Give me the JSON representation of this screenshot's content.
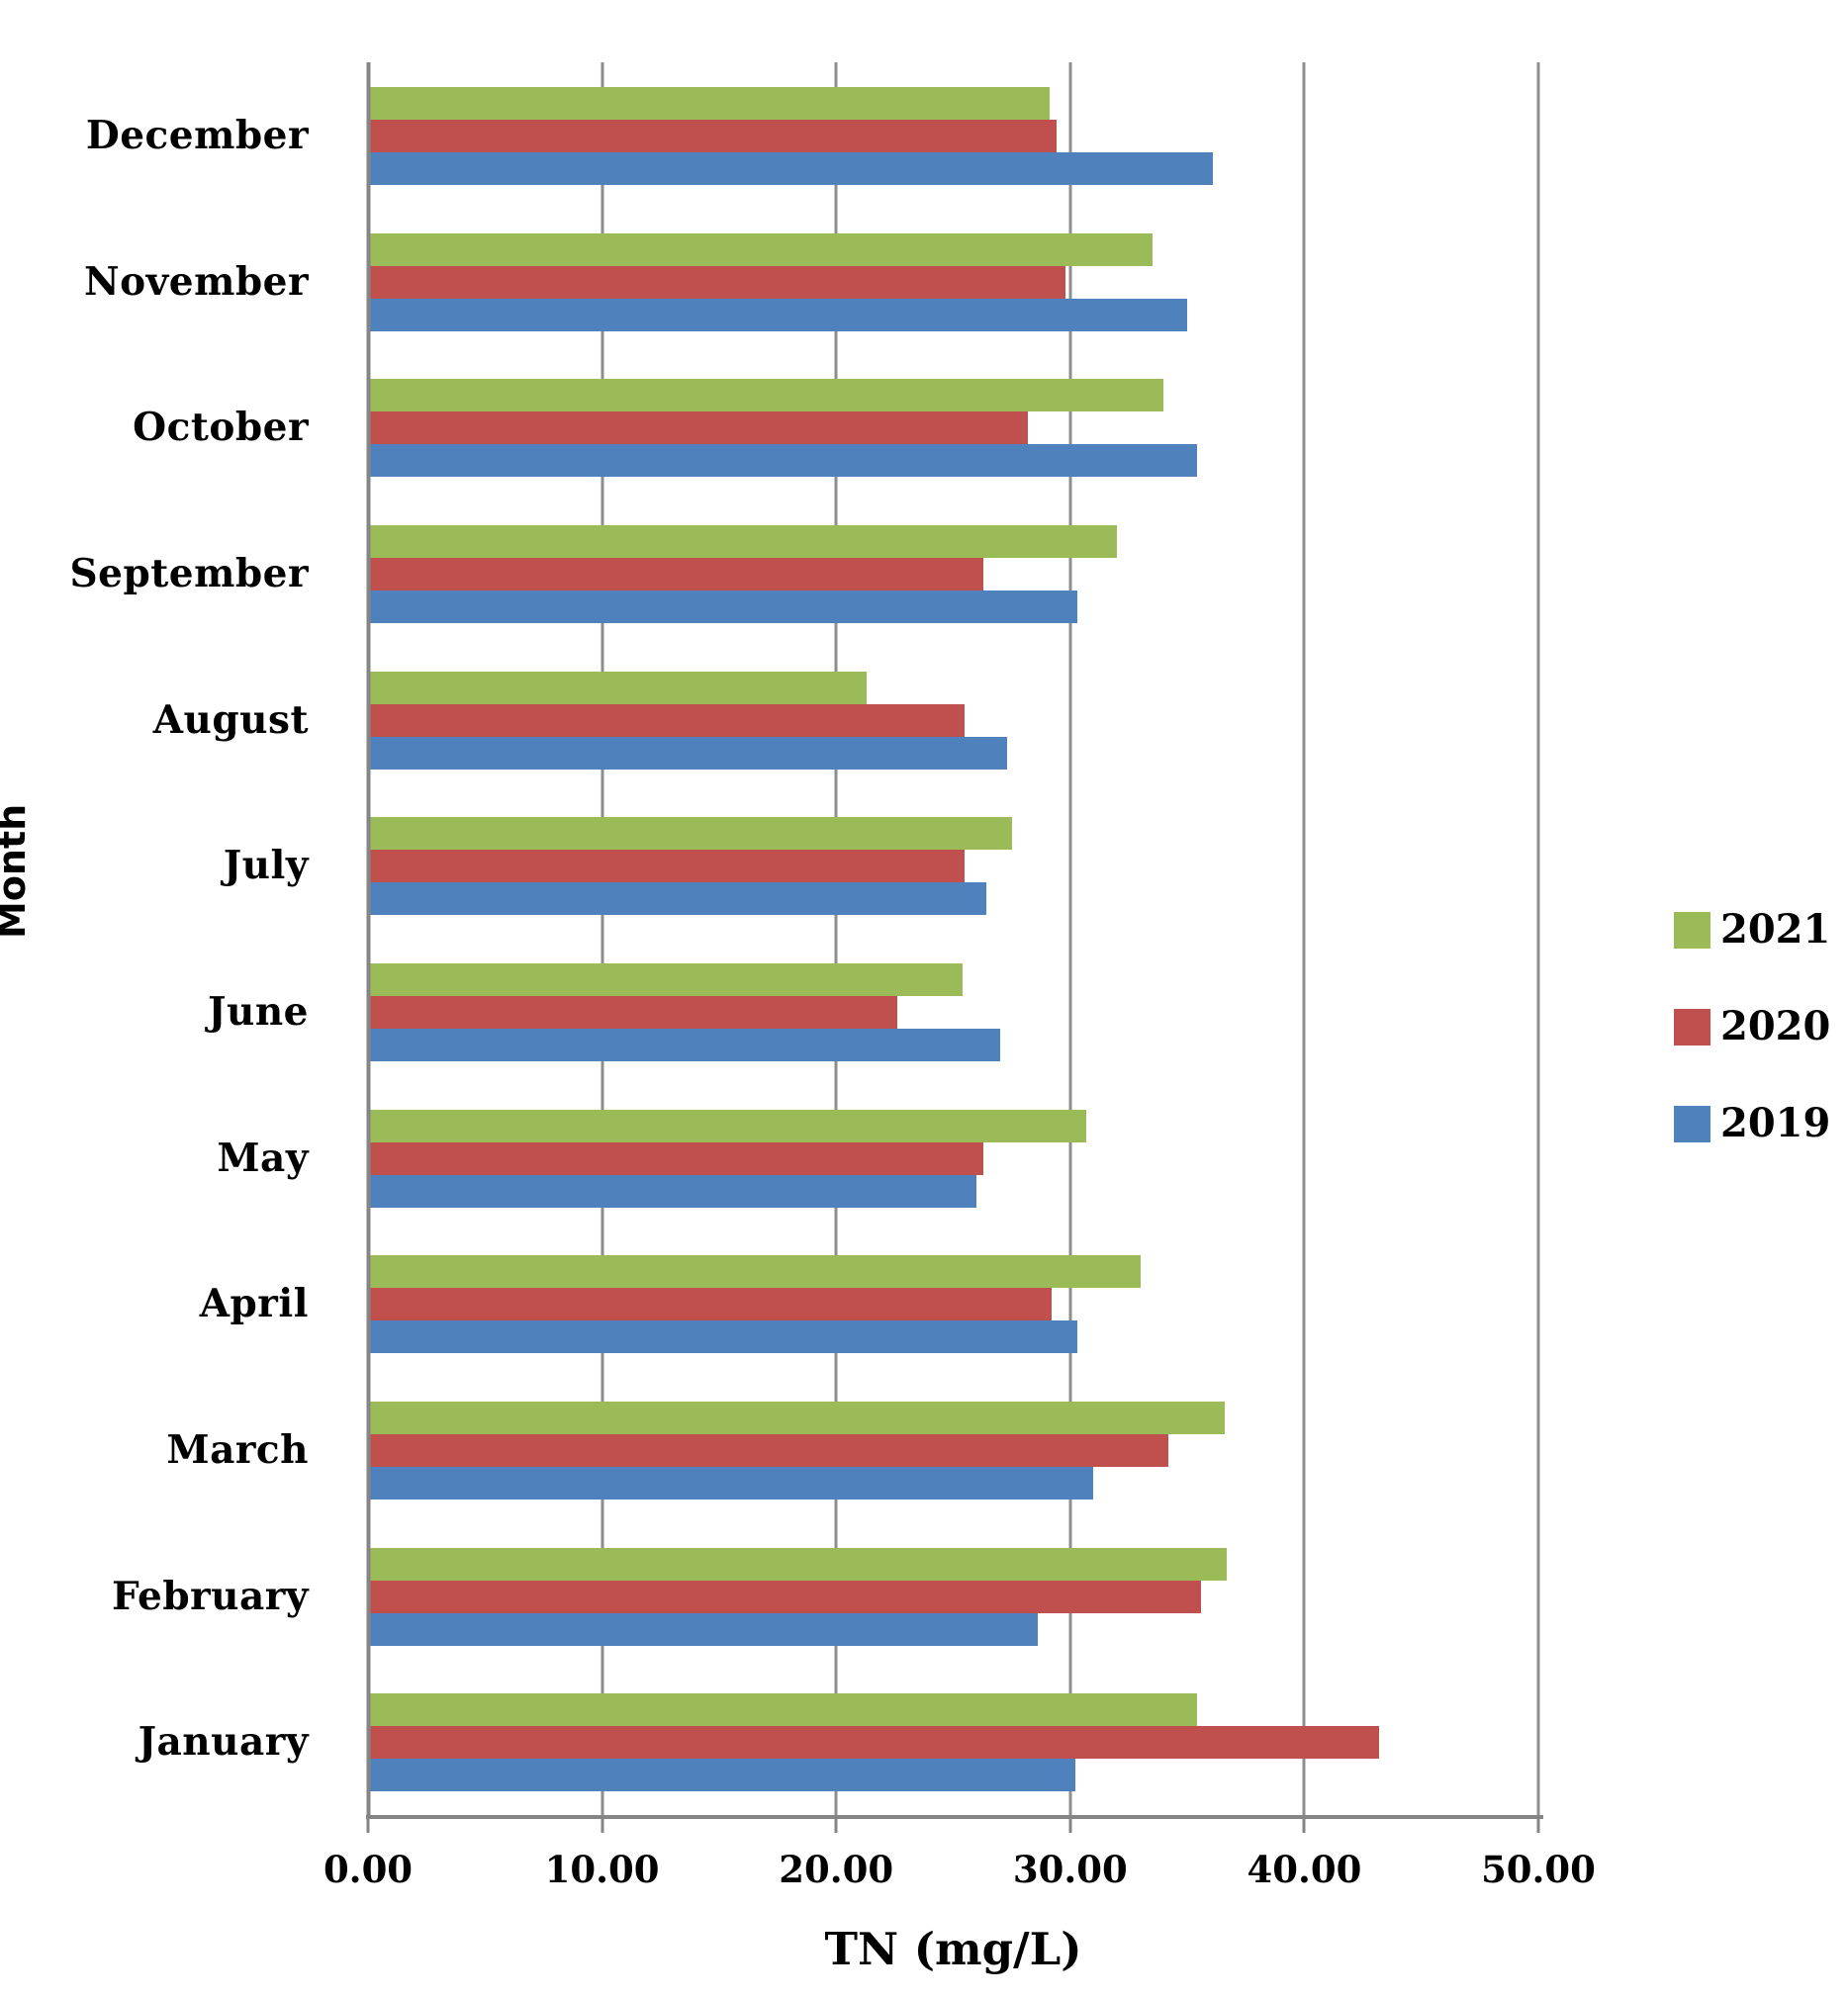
{
  "chart_data": {
    "type": "bar",
    "orientation": "horizontal",
    "xlabel": "TN (mg/L)",
    "ylabel": "Month",
    "xlim": [
      0,
      50
    ],
    "grid": true,
    "legend_position": "right",
    "x_ticks": [
      {
        "value": 0,
        "label": "0.00"
      },
      {
        "value": 10,
        "label": "10.00"
      },
      {
        "value": 20,
        "label": "20.00"
      },
      {
        "value": 30,
        "label": "30.00"
      },
      {
        "value": 40,
        "label": "40.00"
      },
      {
        "value": 50,
        "label": "50.00"
      }
    ],
    "categories": [
      "December",
      "November",
      "October",
      "September",
      "August",
      "July",
      "June",
      "May",
      "April",
      "March",
      "February",
      "January"
    ],
    "series": [
      {
        "name": "2021",
        "color": "#9BBB59",
        "values": [
          29.1,
          33.5,
          34.0,
          32.0,
          21.3,
          27.5,
          25.4,
          30.7,
          33.0,
          36.6,
          36.7,
          35.4
        ]
      },
      {
        "name": "2020",
        "color": "#C0504D",
        "values": [
          29.4,
          29.8,
          28.2,
          26.3,
          25.5,
          25.5,
          22.6,
          26.3,
          29.2,
          34.2,
          35.6,
          43.2
        ]
      },
      {
        "name": "2019",
        "color": "#4F81BD",
        "values": [
          36.1,
          35.0,
          35.4,
          30.3,
          27.3,
          26.4,
          27.0,
          26.0,
          30.3,
          31.0,
          28.6,
          30.2
        ]
      }
    ]
  },
  "colors": {
    "gridline": "#8e8e8e",
    "axis": "#858585",
    "text": "#000000",
    "background": "#ffffff"
  }
}
